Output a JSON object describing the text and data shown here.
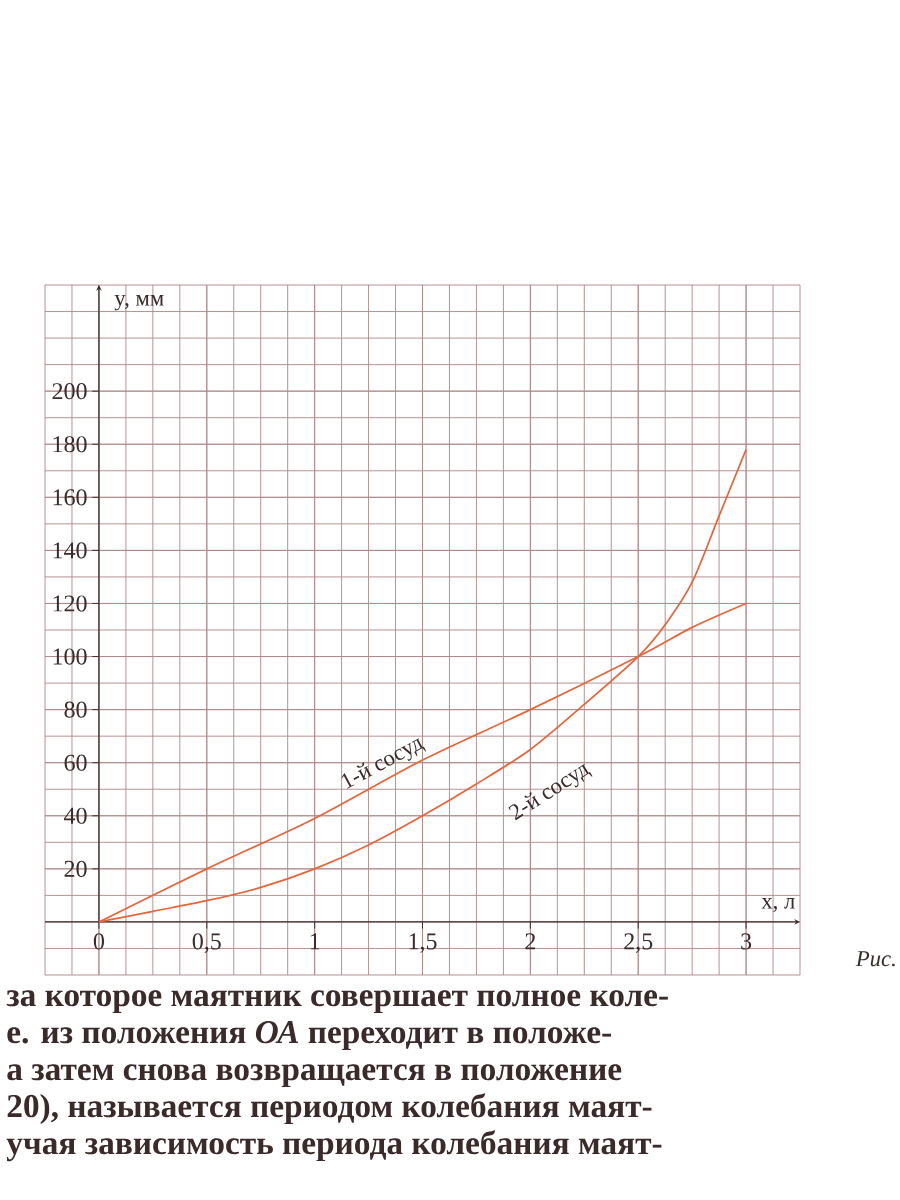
{
  "chart_data": {
    "type": "line",
    "xlabel": "x, л",
    "ylabel": "y, мм",
    "series": [
      {
        "name": "1-й сосуд",
        "color": "#e8643a",
        "x": [
          0,
          0.5,
          1,
          1.5,
          2,
          2.5,
          2.75,
          3
        ],
        "values": [
          0,
          20,
          39,
          61,
          80,
          100,
          111,
          120
        ]
      },
      {
        "name": "2-й сосуд",
        "color": "#e8643a",
        "x": [
          0,
          0.25,
          0.5,
          0.75,
          1,
          1.25,
          1.5,
          1.75,
          2,
          2.25,
          2.5,
          2.625,
          2.75,
          2.875,
          3
        ],
        "values": [
          0,
          4,
          8,
          13,
          20,
          29,
          40,
          52,
          65,
          82,
          100,
          112,
          128,
          153,
          178
        ]
      }
    ],
    "xlim": [
      -0.25,
      3.25
    ],
    "ylim": [
      -20,
      240
    ],
    "xticks": [
      {
        "value": 0,
        "label": "0"
      },
      {
        "value": 0.5,
        "label": "0,5"
      },
      1,
      {
        "value": 1.5,
        "label": "1,5"
      },
      2,
      {
        "value": 2.5,
        "label": "2,5"
      },
      3
    ],
    "yticks": [
      20,
      40,
      60,
      80,
      100,
      120,
      140,
      160,
      180,
      200
    ],
    "grid": true,
    "marker": "none",
    "annotations": [
      "Рис.",
      "за которое маятник совершает полное коле-",
      "е. из положения *ОА* переходит в положе-",
      "а затем снова возвращается в положение",
      "20), называется периодом колебания маят-",
      "учая зависимость периода колебания маят-"
    ]
  }
}
